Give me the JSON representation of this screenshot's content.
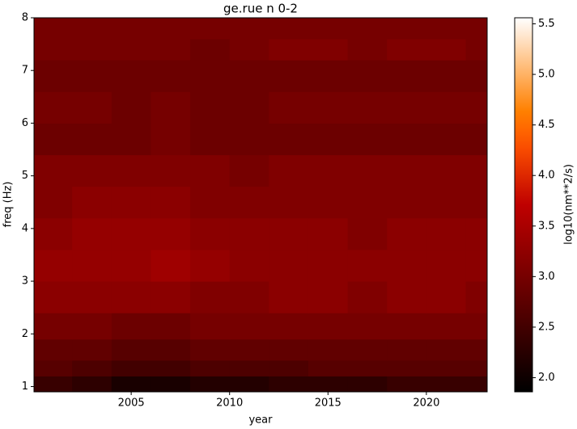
{
  "chart_data": {
    "type": "heatmap",
    "title": "ge.rue n 0-2",
    "x_label": "year",
    "y_label": "freq (Hz)",
    "colorbar_label": "log10(nm**2/s)",
    "colormap": "gist_heat",
    "xlim": [
      2000.06,
      2023.09
    ],
    "ylim": [
      0.9,
      8
    ],
    "xticks": [
      2005,
      2010,
      2015,
      2020
    ],
    "yticks": [
      1,
      2,
      3,
      4,
      5,
      6,
      7,
      8
    ],
    "clim": [
      1.86,
      5.56
    ],
    "cticks": [
      {
        "value": 2,
        "label": "2.0"
      },
      2.5,
      {
        "value": 3,
        "label": "3.0"
      },
      3.5,
      {
        "value": 4,
        "label": "4.0"
      },
      4.5,
      {
        "value": 5,
        "label": "5.0"
      },
      5.5
    ],
    "xbins": [
      2000.06,
      2002,
      2004,
      2006,
      2008,
      2010,
      2012,
      2014,
      2016,
      2018,
      2020,
      2022,
      2023.09
    ],
    "ybins": [
      0.9,
      1.2,
      1.5,
      1.9,
      2.4,
      3,
      3.6,
      4.2,
      4.8,
      5.4,
      6,
      6.6,
      7.2,
      7.6,
      8
    ],
    "values": [
      [
        2.4,
        2.3,
        2.1,
        2.1,
        2.2,
        2.2,
        2.3,
        2.3,
        2.3,
        2.4,
        2.4,
        2.4
      ],
      [
        2.7,
        2.6,
        2.5,
        2.5,
        2.6,
        2.6,
        2.6,
        2.7,
        2.7,
        2.7,
        2.7,
        2.7
      ],
      [
        2.8,
        2.8,
        2.7,
        2.7,
        2.8,
        2.8,
        2.8,
        2.8,
        2.8,
        2.8,
        2.8,
        2.8
      ],
      [
        3.0,
        3.0,
        2.9,
        2.9,
        3.0,
        3.0,
        3.0,
        3.0,
        3.0,
        3.0,
        3.0,
        3.0
      ],
      [
        3.2,
        3.2,
        3.2,
        3.2,
        3.1,
        3.1,
        3.2,
        3.2,
        3.1,
        3.2,
        3.2,
        3.1
      ],
      [
        3.3,
        3.3,
        3.3,
        3.4,
        3.3,
        3.2,
        3.2,
        3.2,
        3.2,
        3.2,
        3.2,
        3.2
      ],
      [
        3.2,
        3.3,
        3.3,
        3.3,
        3.2,
        3.2,
        3.2,
        3.2,
        3.1,
        3.2,
        3.2,
        3.2
      ],
      [
        3.1,
        3.2,
        3.2,
        3.2,
        3.1,
        3.1,
        3.1,
        3.1,
        3.1,
        3.1,
        3.1,
        3.1
      ],
      [
        3.1,
        3.1,
        3.1,
        3.1,
        3.1,
        3.0,
        3.1,
        3.1,
        3.1,
        3.1,
        3.1,
        3.1
      ],
      [
        2.9,
        2.9,
        2.9,
        3.0,
        2.9,
        2.9,
        2.9,
        2.9,
        2.9,
        2.9,
        2.9,
        2.9
      ],
      [
        3.0,
        3.0,
        2.9,
        3.0,
        2.9,
        2.9,
        3.0,
        3.0,
        3.0,
        3.0,
        3.0,
        3.0
      ],
      [
        2.9,
        2.9,
        2.9,
        2.9,
        2.9,
        2.9,
        2.9,
        2.9,
        2.9,
        2.9,
        2.9,
        2.9
      ],
      [
        3.0,
        3.0,
        3.0,
        3.0,
        2.9,
        3.0,
        3.1,
        3.1,
        3.0,
        3.1,
        3.1,
        3.0
      ],
      [
        3.0,
        3.0,
        3.0,
        3.0,
        3.0,
        3.0,
        3.0,
        3.0,
        3.0,
        3.0,
        3.0,
        3.0
      ]
    ]
  }
}
